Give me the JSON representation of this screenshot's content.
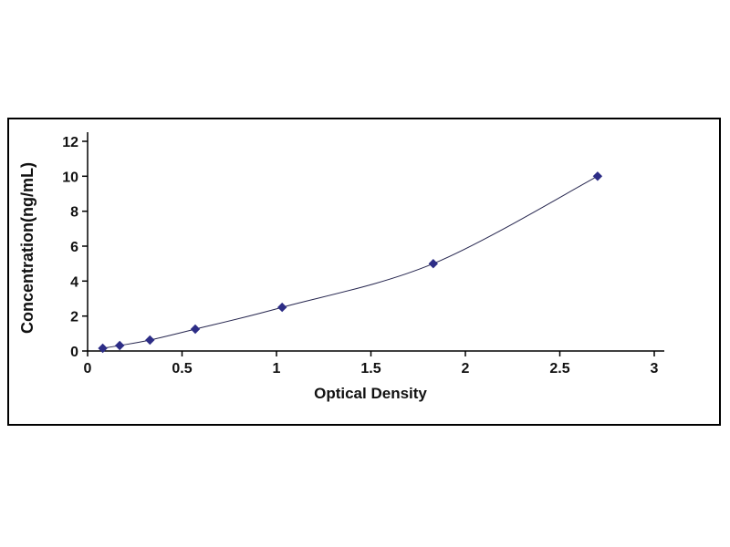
{
  "chart_data": {
    "type": "line",
    "title": "",
    "xlabel": "Optical Density",
    "ylabel": "Concentration(ng/mL)",
    "xlim": [
      0,
      3
    ],
    "ylim": [
      0,
      12
    ],
    "xticks": [
      0,
      0.5,
      1,
      1.5,
      2,
      2.5,
      3
    ],
    "yticks": [
      0,
      2,
      4,
      6,
      8,
      10,
      12
    ],
    "grid": false,
    "legend": "none",
    "marker": "diamond",
    "marker_color": "#2d2d86",
    "line_color": "#26264f",
    "points": [
      [
        0.08,
        0.156
      ],
      [
        0.17,
        0.312
      ],
      [
        0.33,
        0.625
      ],
      [
        0.57,
        1.25
      ],
      [
        1.03,
        2.5
      ],
      [
        1.83,
        5.0
      ],
      [
        2.7,
        10.0
      ]
    ]
  }
}
